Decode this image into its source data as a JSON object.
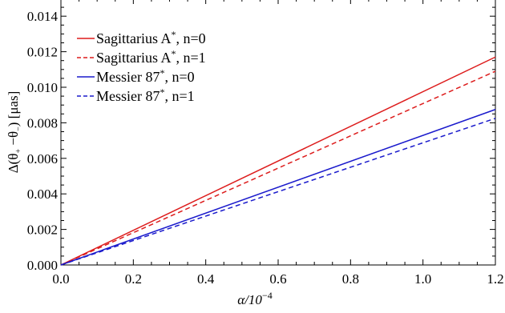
{
  "chart_data": {
    "type": "line",
    "xlabel": "α/10",
    "xlabel_exponent": "−4",
    "ylabel": "Δ(θ",
    "ylabel_sub_plus": "+",
    "ylabel_mid": " −θ",
    "ylabel_sub_minus": "−",
    "ylabel_unit": ") [μas]",
    "xlim": [
      0,
      1.2
    ],
    "ylim": [
      0,
      0.015
    ],
    "x_ticks": [
      {
        "value": 0.0,
        "label": "0.0"
      },
      {
        "value": 0.2,
        "label": "0.2"
      },
      {
        "value": 0.4,
        "label": "0.4"
      },
      {
        "value": 0.6,
        "label": "0.6"
      },
      {
        "value": 0.8,
        "label": "0.8"
      },
      {
        "value": 1.0,
        "label": "1.0"
      },
      {
        "value": 1.2,
        "label": "1.2"
      }
    ],
    "y_ticks": [
      {
        "value": 0.0,
        "label": "0.000"
      },
      {
        "value": 0.002,
        "label": "0.002"
      },
      {
        "value": 0.004,
        "label": "0.004"
      },
      {
        "value": 0.006,
        "label": "0.006"
      },
      {
        "value": 0.008,
        "label": "0.008"
      },
      {
        "value": 0.01,
        "label": "0.010"
      },
      {
        "value": 0.012,
        "label": "0.012"
      },
      {
        "value": 0.014,
        "label": "0.014"
      }
    ],
    "grid": false,
    "legend_position": "top-left",
    "series": [
      {
        "name": "Sagittarius A",
        "name_sup": "*",
        "name_suffix": ", n=0",
        "color": "#dd1c1c",
        "dash": "solid",
        "x": [
          0,
          1.2
        ],
        "y": [
          0,
          0.0117
        ]
      },
      {
        "name": "Sagittarius A",
        "name_sup": "*",
        "name_suffix": ", n=1",
        "color": "#dd1c1c",
        "dash": "dashed",
        "x": [
          0,
          1.2
        ],
        "y": [
          0,
          0.0109
        ]
      },
      {
        "name": "Messier 87",
        "name_sup": "*",
        "name_suffix": ", n=0",
        "color": "#1a1acc",
        "dash": "solid",
        "x": [
          0,
          1.2
        ],
        "y": [
          0,
          0.00875
        ]
      },
      {
        "name": "Messier 87",
        "name_sup": "*",
        "name_suffix": ", n=1",
        "color": "#1a1acc",
        "dash": "dashed",
        "x": [
          0,
          1.2
        ],
        "y": [
          0,
          0.00825
        ]
      }
    ]
  }
}
